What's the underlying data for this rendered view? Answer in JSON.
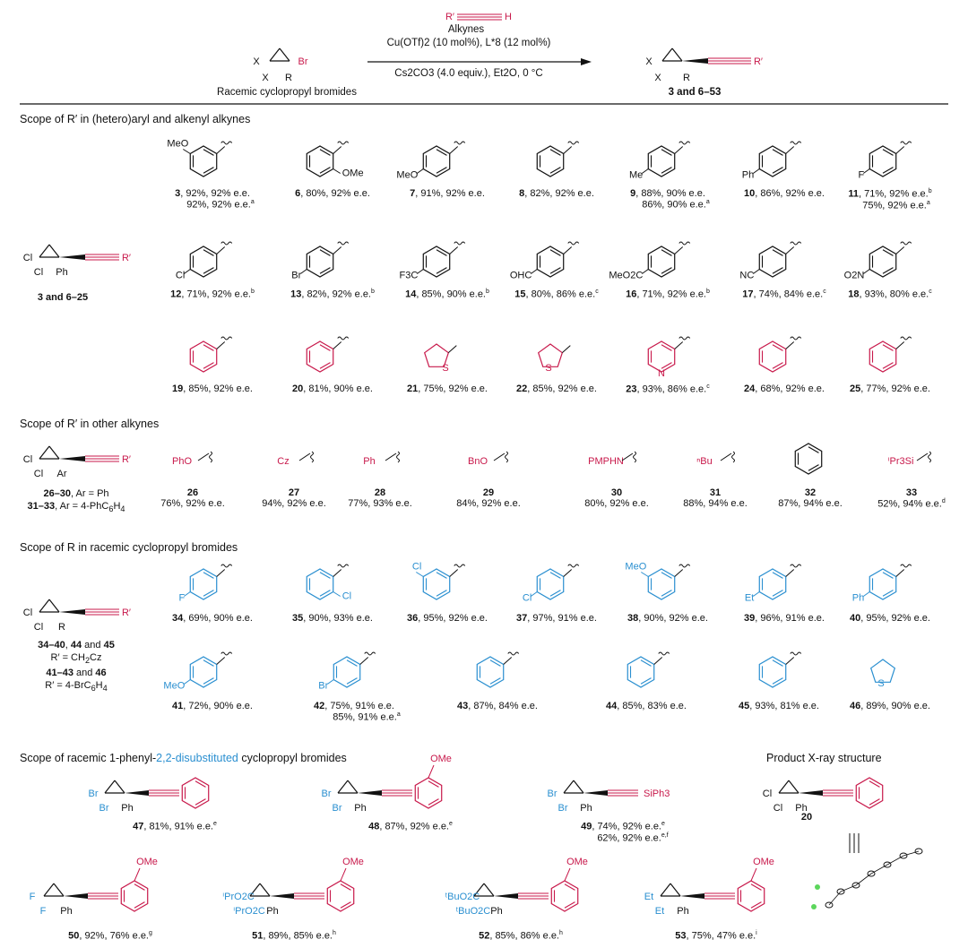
{
  "header": {
    "alkyne_label": "Alkynes",
    "catalyst": "Cu(OTf)2 (10 mol%), L*8 (12 mol%)",
    "conditions": "Cs2CO3 (4.0 equiv.), Et2O, 0 °C",
    "reactant_label": "Racemic cyclopropyl bromides",
    "product_label": "3 and 6–53"
  },
  "sections": {
    "s1": "Scope of R′ in (hetero)aryl and alkenyl alkynes",
    "s2": "Scope of R′ in other alkynes",
    "s3": "Scope of R in racemic cyclopropyl bromides",
    "s4_pre": "Scope of racemic 1-phenyl-",
    "s4_hl": "2,2-disubstituted",
    "s4_post": " cyclopropyl bromides",
    "xray": "Product X-ray structure"
  },
  "core_labels": {
    "c1": "3 and 6–25",
    "c2a": "26–30, Ar = Ph",
    "c2b": "31–33, Ar = 4-PhC6H4",
    "c3a": "34–40, 44 and 45",
    "c3b": "R′ = CH2Cz",
    "c3c": "41–43 and 46",
    "c3d": "R′ = 4-BrC6H4"
  },
  "row1": [
    {
      "n": "3",
      "t": ", 92%, 92% e.e.",
      "t2": "92%, 92% e.e.",
      "sup2": "a",
      "sub": "MeO"
    },
    {
      "n": "6",
      "t": ", 80%, 92% e.e.",
      "sub": "OMe"
    },
    {
      "n": "7",
      "t": ", 91%, 92% e.e.",
      "sub": "MeO"
    },
    {
      "n": "8",
      "t": ", 82%, 92% e.e.",
      "sub": ""
    },
    {
      "n": "9",
      "t": ", 88%, 90% e.e.",
      "t2": "86%, 90% e.e.",
      "sup2": "a",
      "sub": "Me"
    },
    {
      "n": "10",
      "t": ", 86%, 92% e.e.",
      "sub": "Ph"
    },
    {
      "n": "11",
      "t": ", 71%, 92% e.e.",
      "sup": "b",
      "t2": "75%, 92% e.e.",
      "sup2": "a",
      "sub": "F"
    }
  ],
  "row2": [
    {
      "n": "12",
      "t": ", 71%, 92% e.e.",
      "sup": "b",
      "sub": "Cl"
    },
    {
      "n": "13",
      "t": ", 82%, 92% e.e.",
      "sup": "b",
      "sub": "Br"
    },
    {
      "n": "14",
      "t": ", 85%, 90% e.e.",
      "sup": "b",
      "sub": "F3C"
    },
    {
      "n": "15",
      "t": ", 80%, 86% e.e.",
      "sup": "c",
      "sub": "OHC"
    },
    {
      "n": "16",
      "t": ", 71%, 92% e.e.",
      "sup": "b",
      "sub": "MeO2C"
    },
    {
      "n": "17",
      "t": ", 74%, 84% e.e.",
      "sup": "c",
      "sub": "NC"
    },
    {
      "n": "18",
      "t": ", 93%, 80% e.e.",
      "sup": "c",
      "sub": "O2N"
    }
  ],
  "row3": [
    {
      "n": "19",
      "t": ", 85%, 92% e.e."
    },
    {
      "n": "20",
      "t": ", 81%, 90% e.e."
    },
    {
      "n": "21",
      "t": ", 75%, 92% e.e."
    },
    {
      "n": "22",
      "t": ", 85%, 92% e.e."
    },
    {
      "n": "23",
      "t": ", 93%, 86% e.e.",
      "sup": "c"
    },
    {
      "n": "24",
      "t": ", 68%, 92% e.e."
    },
    {
      "n": "25",
      "t": ", 77%, 92% e.e."
    }
  ],
  "row4": [
    {
      "n": "26",
      "t": "76%, 92% e.e.",
      "g": "PhO"
    },
    {
      "n": "27",
      "t": "94%, 92% e.e.",
      "g": "Cz"
    },
    {
      "n": "28",
      "t": "77%, 93% e.e.",
      "g": "Ph"
    },
    {
      "n": "29",
      "t": "84%, 92% e.e.",
      "g": "BnO"
    },
    {
      "n": "30",
      "t": "80%, 92% e.e.",
      "g": "PMPHN"
    },
    {
      "n": "31",
      "t": "88%, 94% e.e.",
      "g": "nBu"
    },
    {
      "n": "32",
      "t": "87%, 94% e.e.",
      "g": ""
    },
    {
      "n": "33",
      "t": "52%, 94% e.e.",
      "sup": "d",
      "g": "iPr3Si"
    }
  ],
  "row5": [
    {
      "n": "34",
      "t": ", 69%, 90% e.e.",
      "sub": "F"
    },
    {
      "n": "35",
      "t": ", 90%, 93% e.e.",
      "sub": "Cl"
    },
    {
      "n": "36",
      "t": ", 95%, 92% e.e.",
      "sub": "Cl"
    },
    {
      "n": "37",
      "t": ", 97%, 91% e.e.",
      "sub": "Cl"
    },
    {
      "n": "38",
      "t": ", 90%, 92% e.e.",
      "sub": "MeO"
    },
    {
      "n": "39",
      "t": ", 96%, 91% e.e.",
      "sub": "Et"
    },
    {
      "n": "40",
      "t": ", 95%, 92% e.e.",
      "sub": "Ph"
    }
  ],
  "row6": [
    {
      "n": "41",
      "t": ", 72%, 90% e.e.",
      "sub": "MeO"
    },
    {
      "n": "42",
      "t": ", 75%, 91% e.e.",
      "t2": "85%, 91% e.e.",
      "sup2": "a",
      "sub": "Br"
    },
    {
      "n": "43",
      "t": ", 87%, 84% e.e."
    },
    {
      "n": "44",
      "t": ", 85%, 83% e.e."
    },
    {
      "n": "45",
      "t": ", 93%, 81% e.e."
    },
    {
      "n": "46",
      "t": ", 89%, 90% e.e."
    }
  ],
  "row7": [
    {
      "n": "47",
      "t": ", 81%, 91% e.e.",
      "sup": "e"
    },
    {
      "n": "48",
      "t": ", 87%, 92% e.e.",
      "sup": "e"
    },
    {
      "n": "49",
      "t": ", 74%, 92% e.e.",
      "sup": "e",
      "t2": "62%, 92% e.e.",
      "sup2": "e,f"
    },
    {
      "n": "20",
      "t": ""
    }
  ],
  "row8": [
    {
      "n": "50",
      "t": ", 92%, 76% e.e.",
      "sup": "g"
    },
    {
      "n": "51",
      "t": ", 89%, 85% e.e.",
      "sup": "h"
    },
    {
      "n": "52",
      "t": ", 85%, 86% e.e.",
      "sup": "h"
    },
    {
      "n": "53",
      "t": ", 75%, 47% e.e.",
      "sup": "i"
    }
  ],
  "colors": {
    "red": "#c8194b",
    "blue": "#2a8fd0",
    "black": "#111111"
  }
}
